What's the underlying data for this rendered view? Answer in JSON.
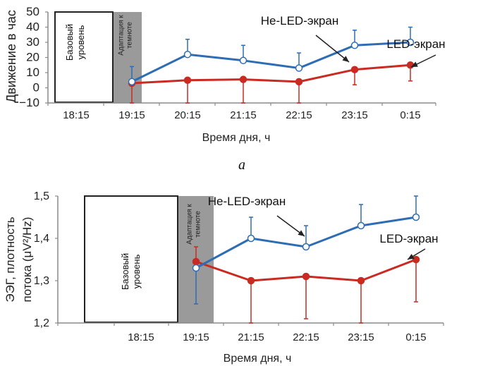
{
  "figure_caption": "а",
  "colors": {
    "non_led": "#2e6db5",
    "led": "#c92a22",
    "axis": "#8a8a8a",
    "adaptation_fill": "#9a9a9a",
    "arrow": "#222222"
  },
  "chart_data": [
    {
      "type": "line",
      "title": "",
      "xlabel": "Время дня, ч",
      "ylabel": "Движение в час",
      "ylim": [
        -10,
        50
      ],
      "yticks": [
        -10,
        0,
        10,
        20,
        30,
        40,
        50
      ],
      "ytick_labels": [
        "−10",
        "0",
        "10",
        "20",
        "30",
        "40",
        "50"
      ],
      "categories": [
        "18:15",
        "19:15",
        "20:15",
        "21:15",
        "22:15",
        "23:15",
        "0:15"
      ],
      "grid": false,
      "regions": [
        {
          "label_lines": [
            "Базовый",
            "уровень"
          ],
          "style": "outlined-white"
        },
        {
          "label_lines": [
            "Адаптация к",
            "темноте"
          ],
          "style": "gray"
        }
      ],
      "series": [
        {
          "name": "Не-LED-экран",
          "marker": "open-circle",
          "x": [
            "19:15",
            "20:15",
            "21:15",
            "22:15",
            "23:15",
            "0:15"
          ],
          "values": [
            4,
            22,
            18,
            13,
            28,
            30
          ],
          "error_upper": [
            14,
            32,
            28,
            23,
            38,
            40
          ],
          "error_lower": [
            null,
            null,
            null,
            null,
            null,
            null
          ]
        },
        {
          "name": "LED-экран",
          "marker": "filled-circle",
          "x": [
            "19:15",
            "20:15",
            "21:15",
            "22:15",
            "23:15",
            "0:15"
          ],
          "values": [
            3,
            5,
            5.5,
            4,
            12,
            15
          ],
          "error_upper": [
            null,
            null,
            null,
            null,
            null,
            null
          ],
          "error_lower": [
            -10,
            -10,
            -10,
            -10,
            2,
            4.5
          ]
        }
      ],
      "annotations": [
        {
          "text": "Не-LED-экран",
          "points_to": {
            "series": "Не-LED-экран",
            "x": "23:15"
          }
        },
        {
          "text": "LED-экран",
          "points_to": {
            "series": "LED-экран",
            "x": "0:15"
          }
        }
      ]
    },
    {
      "type": "line",
      "title": "",
      "xlabel": "Время дня, ч",
      "ylabel_lines": [
        "ЭЭГ, плотность",
        "потока (μV²/Hz)"
      ],
      "ylim": [
        1.2,
        1.5
      ],
      "yticks": [
        1.2,
        1.3,
        1.4,
        1.5
      ],
      "ytick_labels": [
        "1,2",
        "1,3",
        "1,4",
        "1,5"
      ],
      "categories": [
        "",
        "18:15",
        "19:15",
        "21:15",
        "22:15",
        "23:15",
        "0:15"
      ],
      "grid": false,
      "regions": [
        {
          "label_lines": [
            "Базовый",
            "уровень"
          ],
          "style": "outlined-white"
        },
        {
          "label_lines": [
            "Адаптация к",
            "темноте"
          ],
          "style": "gray"
        }
      ],
      "series": [
        {
          "name": "Не-LED-экран",
          "marker": "open-circle",
          "x": [
            "19:15",
            "21:15",
            "22:15",
            "23:15",
            "0:15"
          ],
          "values": [
            1.33,
            1.4,
            1.38,
            1.43,
            1.45
          ],
          "error_upper": [
            null,
            1.45,
            1.43,
            1.48,
            1.5
          ],
          "error_lower": [
            1.245,
            null,
            null,
            null,
            null
          ]
        },
        {
          "name": "LED-экран",
          "marker": "filled-circle",
          "x": [
            "19:15",
            "21:15",
            "22:15",
            "23:15",
            "0:15"
          ],
          "values": [
            1.345,
            1.3,
            1.31,
            1.3,
            1.35
          ],
          "error_upper": [
            1.38,
            null,
            null,
            null,
            null
          ],
          "error_lower": [
            null,
            1.2,
            1.21,
            1.2,
            1.25
          ]
        }
      ],
      "annotations": [
        {
          "text": "Не-LED-экран",
          "points_to": {
            "series": "Не-LED-экран",
            "x": "22:15"
          }
        },
        {
          "text": "LED-экран",
          "points_to": {
            "series": "LED-экран",
            "x": "0:15"
          }
        }
      ]
    }
  ]
}
